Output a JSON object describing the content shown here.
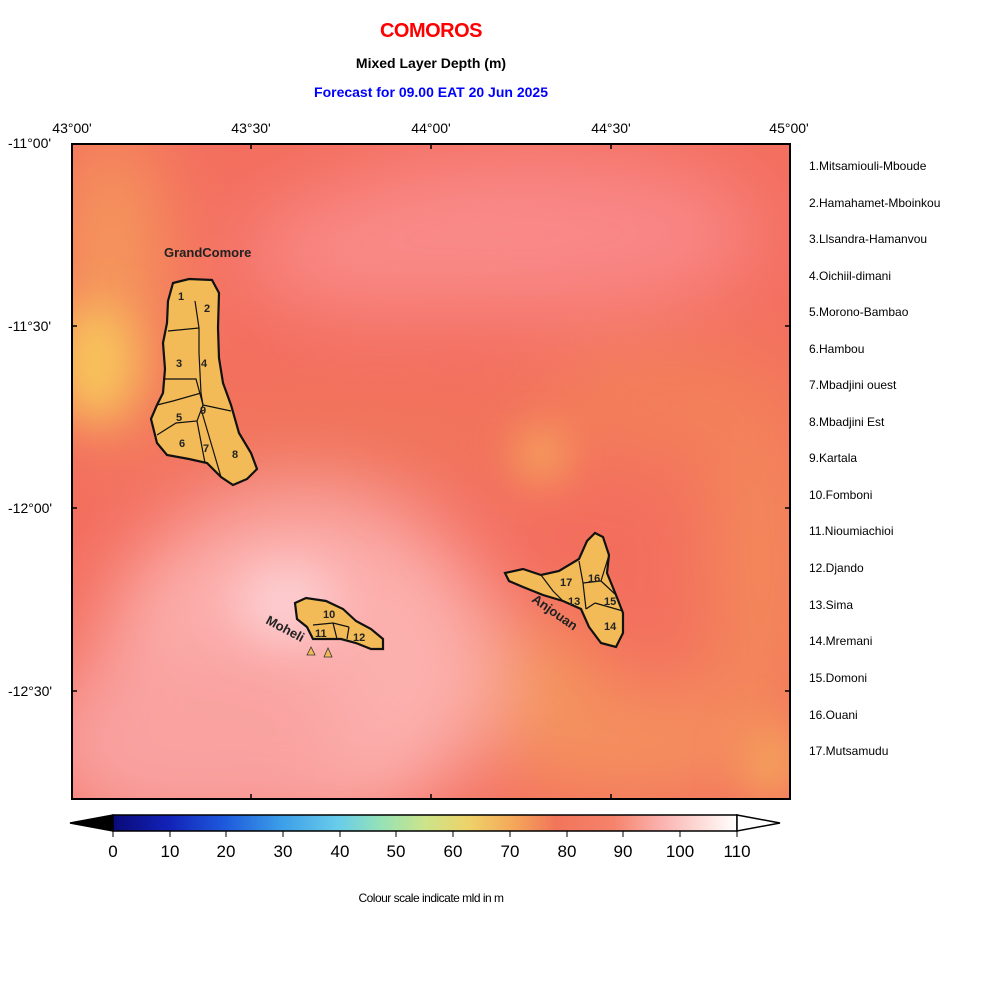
{
  "header": {
    "title": "COMOROS",
    "subtitle": "Mixed Layer Depth (m)",
    "forecast": "Forecast for  09.00 EAT 20 Jun 2025"
  },
  "axes": {
    "lon_ticks": [
      "43°00'",
      "43°30'",
      "44°00'",
      "44°30'",
      "45°00'"
    ],
    "lat_ticks": [
      "-11°00'",
      "-11°30'",
      "-12°00'",
      "-12°30'"
    ]
  },
  "islands": {
    "grand_comore": "GrandComore",
    "moheli": "Moheli",
    "anjouan": "Anjouan"
  },
  "district_numbers": [
    "1",
    "2",
    "3",
    "4",
    "5",
    "6",
    "7",
    "8",
    "9",
    "10",
    "11",
    "12",
    "13",
    "14",
    "15",
    "16",
    "17"
  ],
  "legend": {
    "items": [
      "1.Mitsamiouli-Mboude",
      "2.Hamahamet-Mboinkou",
      "3.Llsandra-Hamanvou",
      "4.Oichiil-dimani",
      "5.Morono-Bambao",
      "6.Hambou",
      "7.Mbadjini ouest",
      "8.Mbadjini Est",
      "9.Kartala",
      "10.Fomboni",
      "11.Nioumiachioi",
      "12.Djando",
      "13.Sima",
      "14.Mremani",
      "15.Domoni",
      "16.Ouani",
      "17.Mutsamudu"
    ]
  },
  "colorbar": {
    "ticks": [
      "0",
      "10",
      "20",
      "30",
      "40",
      "50",
      "60",
      "70",
      "80",
      "90",
      "100",
      "110"
    ],
    "caption": "Colour scale indicate mld in m"
  },
  "colors": {
    "title": "#ff0000",
    "forecast": "#0000ff",
    "land": "#f2bb57",
    "field_base": "#f36c5c"
  }
}
